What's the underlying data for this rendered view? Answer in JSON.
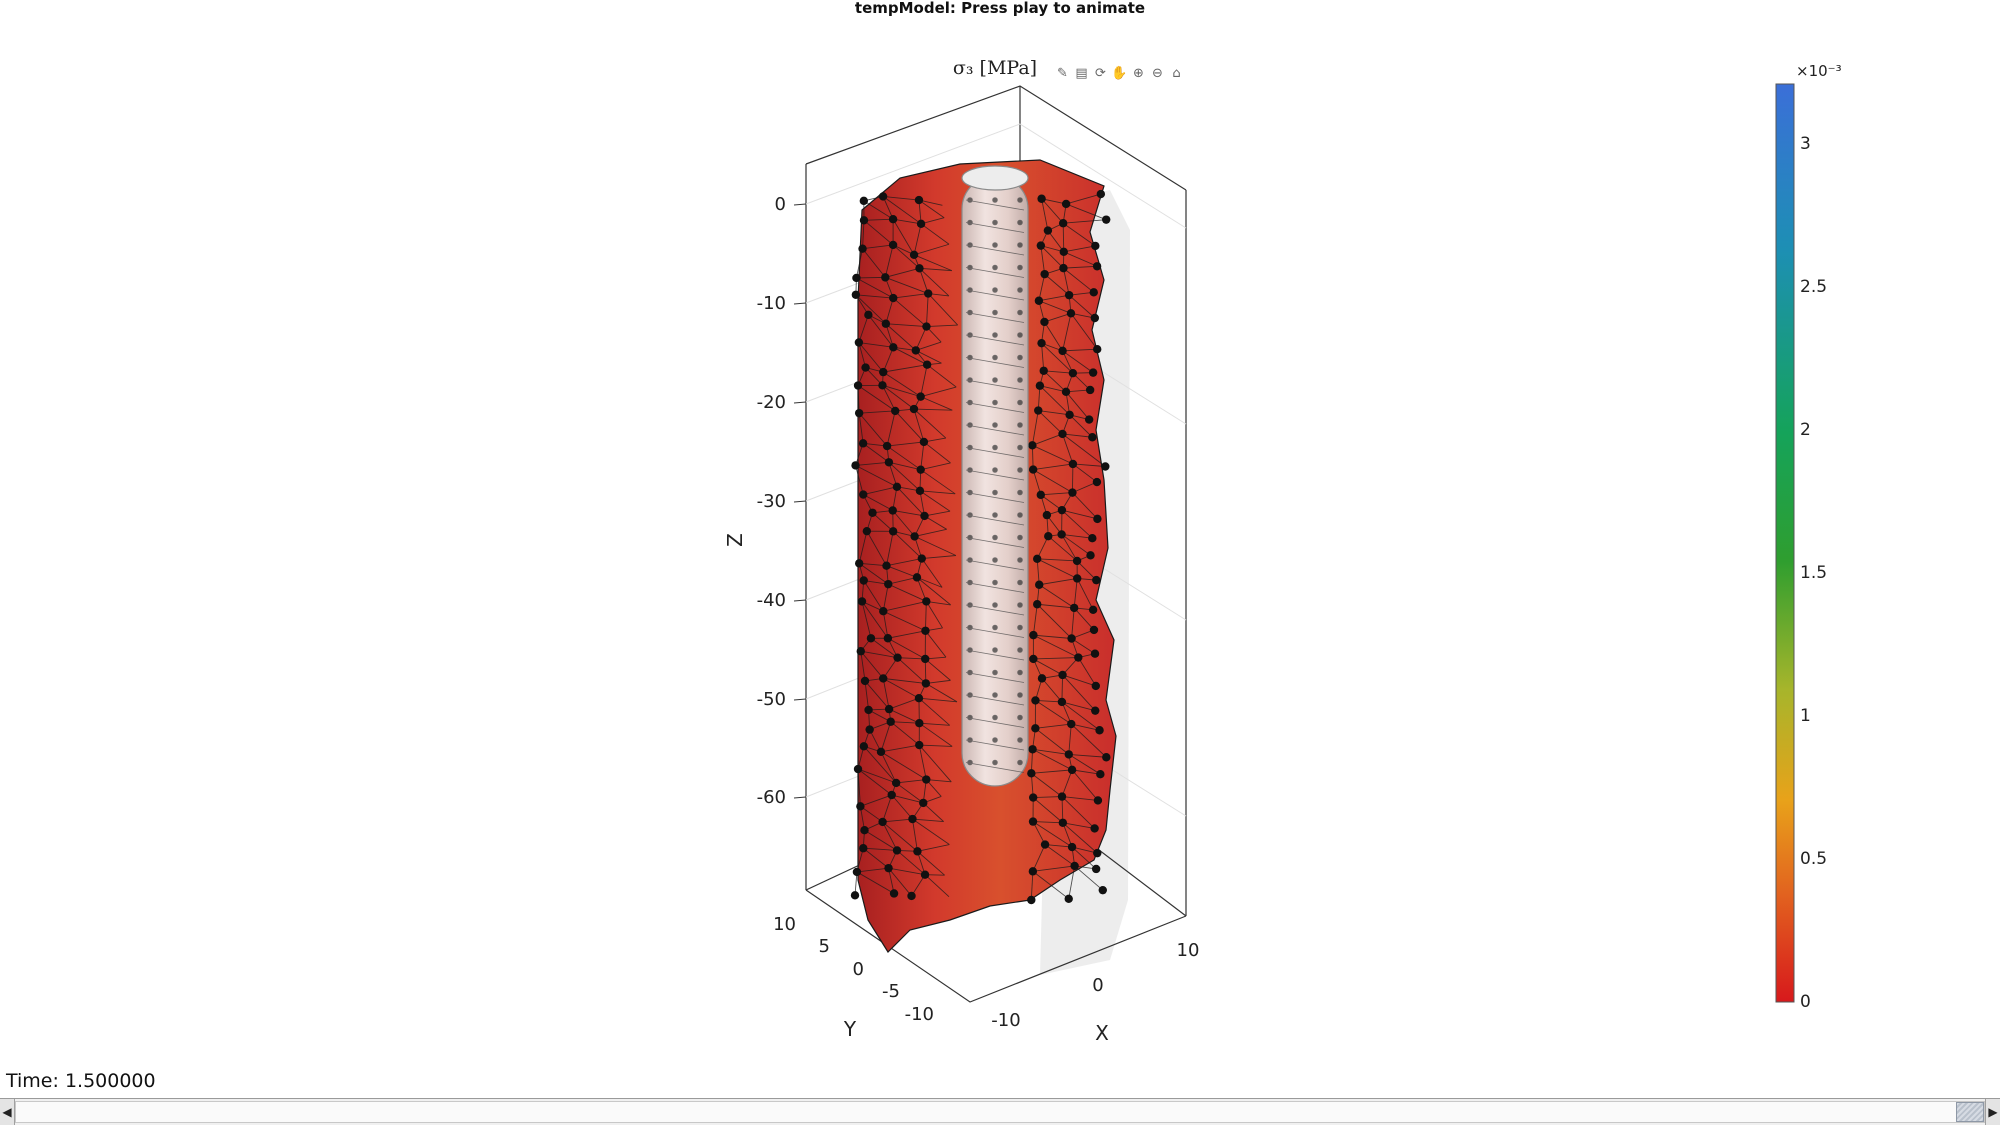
{
  "window": {
    "title": "tempModel: Press play to animate"
  },
  "axes": {
    "title": "σ₃ [MPa]",
    "z_label": "Z",
    "y_label": "Y",
    "x_label": "X",
    "z_ticks": [
      "0",
      "-10",
      "-20",
      "-30",
      "-40",
      "-50",
      "-60"
    ],
    "y_ticks": [
      "10",
      "5",
      "0",
      "-5",
      "-10"
    ],
    "x_ticks": [
      "-10",
      "0",
      "10"
    ],
    "mesh_face_color": "#d1302e",
    "mesh_edge_color": "#1a1a1a",
    "node_color": "#111111",
    "toolbar_icons": [
      "brush-icon",
      "datatip-icon",
      "rotate-icon",
      "pan-icon",
      "zoom-in-icon",
      "zoom-out-icon",
      "home-icon"
    ]
  },
  "colorbar": {
    "multiplier": "×10⁻³",
    "ticks": [
      "3",
      "2.5",
      "2",
      "1.5",
      "1",
      "0.5",
      "0"
    ],
    "colors": [
      "#3b6fd8",
      "#1d8fb4",
      "#15a35a",
      "#2f9e2f",
      "#a7b52b",
      "#e8a21a",
      "#e2641f",
      "#d7191c"
    ]
  },
  "status": {
    "time_label": "Time: 1.500000"
  },
  "slider": {
    "value": 1.0
  }
}
